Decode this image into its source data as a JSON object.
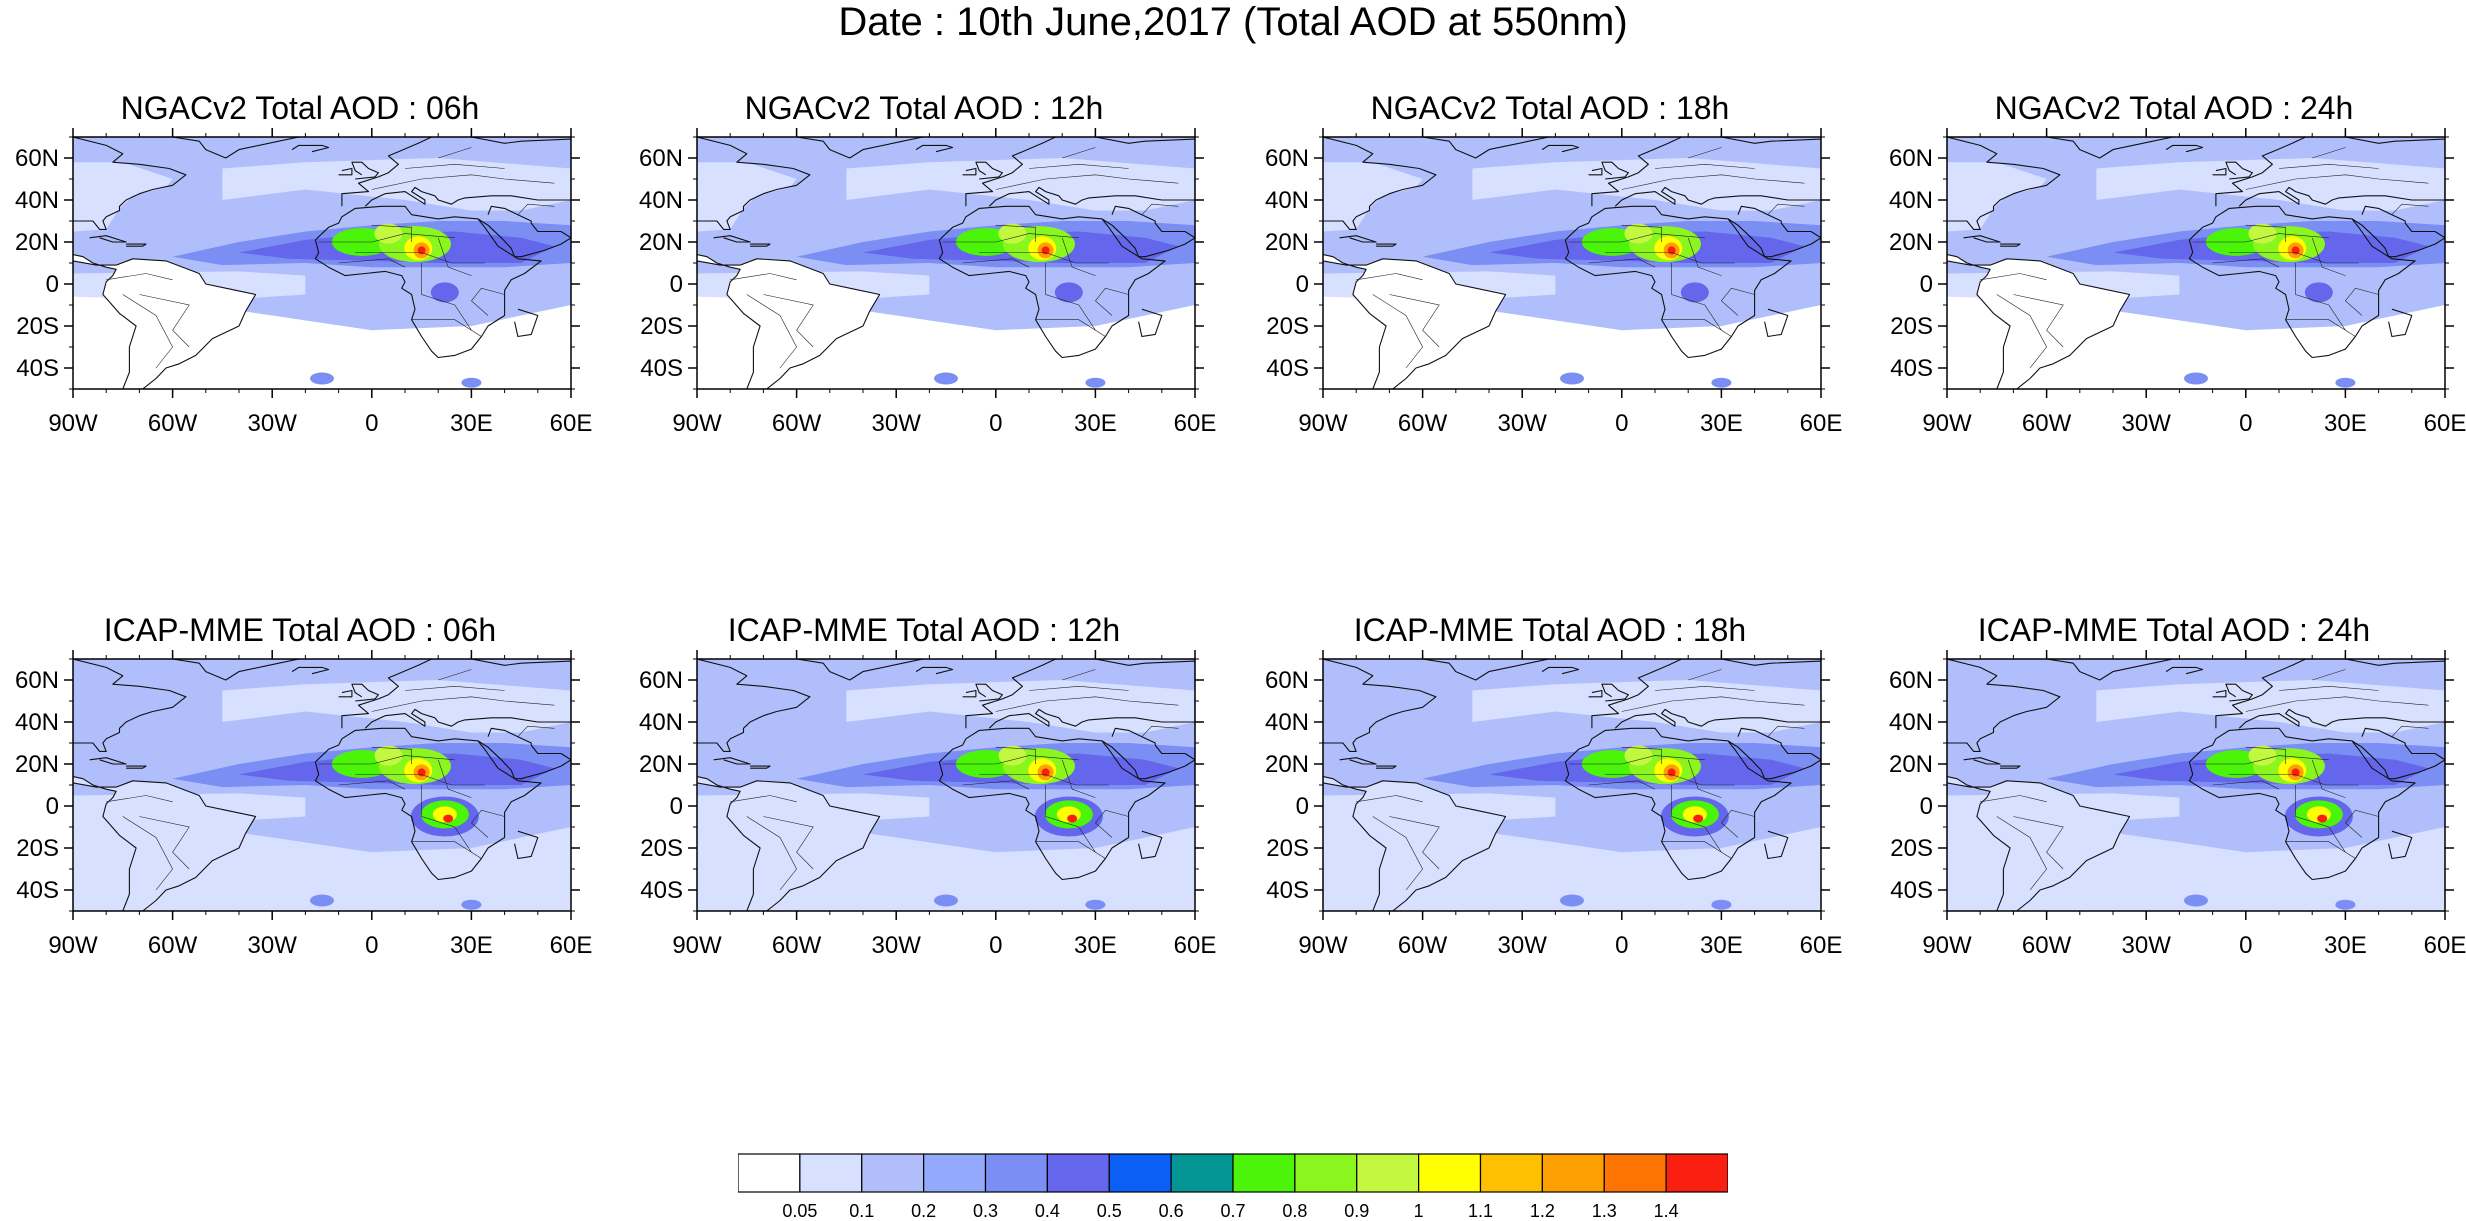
{
  "title": "Date : 10th June,2017 (Total AOD at 550nm)",
  "panels": [
    {
      "title": "NGACv2 Total AOD : 06h",
      "model": "NGACv2",
      "hour": "06h"
    },
    {
      "title": "NGACv2 Total AOD : 12h",
      "model": "NGACv2",
      "hour": "12h"
    },
    {
      "title": "NGACv2 Total AOD : 18h",
      "model": "NGACv2",
      "hour": "18h"
    },
    {
      "title": "NGACv2 Total AOD : 24h",
      "model": "NGACv2",
      "hour": "24h"
    },
    {
      "title": "ICAP-MME Total AOD : 06h",
      "model": "ICAP-MME",
      "hour": "06h"
    },
    {
      "title": "ICAP-MME Total AOD : 12h",
      "model": "ICAP-MME",
      "hour": "12h"
    },
    {
      "title": "ICAP-MME Total AOD : 18h",
      "model": "ICAP-MME",
      "hour": "18h"
    },
    {
      "title": "ICAP-MME Total AOD : 24h",
      "model": "ICAP-MME",
      "hour": "24h"
    }
  ],
  "map": {
    "lon_range": [
      -90,
      60
    ],
    "lat_range": [
      -50,
      70
    ],
    "x_ticks": [
      {
        "value": -90,
        "label": "90W"
      },
      {
        "value": -60,
        "label": "60W"
      },
      {
        "value": -30,
        "label": "30W"
      },
      {
        "value": 0,
        "label": "0"
      },
      {
        "value": 30,
        "label": "30E"
      },
      {
        "value": 60,
        "label": "60E"
      }
    ],
    "y_ticks": [
      {
        "value": 60,
        "label": "60N"
      },
      {
        "value": 40,
        "label": "40N"
      },
      {
        "value": 20,
        "label": "20N"
      },
      {
        "value": 0,
        "label": "0"
      },
      {
        "value": -20,
        "label": "20S"
      },
      {
        "value": -40,
        "label": "40S"
      }
    ]
  },
  "colorbar": {
    "levels": [
      "0.05",
      "0.1",
      "0.2",
      "0.3",
      "0.4",
      "0.5",
      "0.6",
      "0.7",
      "0.8",
      "0.9",
      "1",
      "1.1",
      "1.2",
      "1.3",
      "1.4"
    ],
    "colors": [
      "#ffffff",
      "#d8e0ff",
      "#b0bffb",
      "#93a9fb",
      "#7b8ef4",
      "#6466ec",
      "#0b5ff5",
      "#049595",
      "#4bf409",
      "#8bf61d",
      "#c2f940",
      "#ffff01",
      "#fec001",
      "#fea001",
      "#fe7402",
      "#f92012"
    ]
  }
}
